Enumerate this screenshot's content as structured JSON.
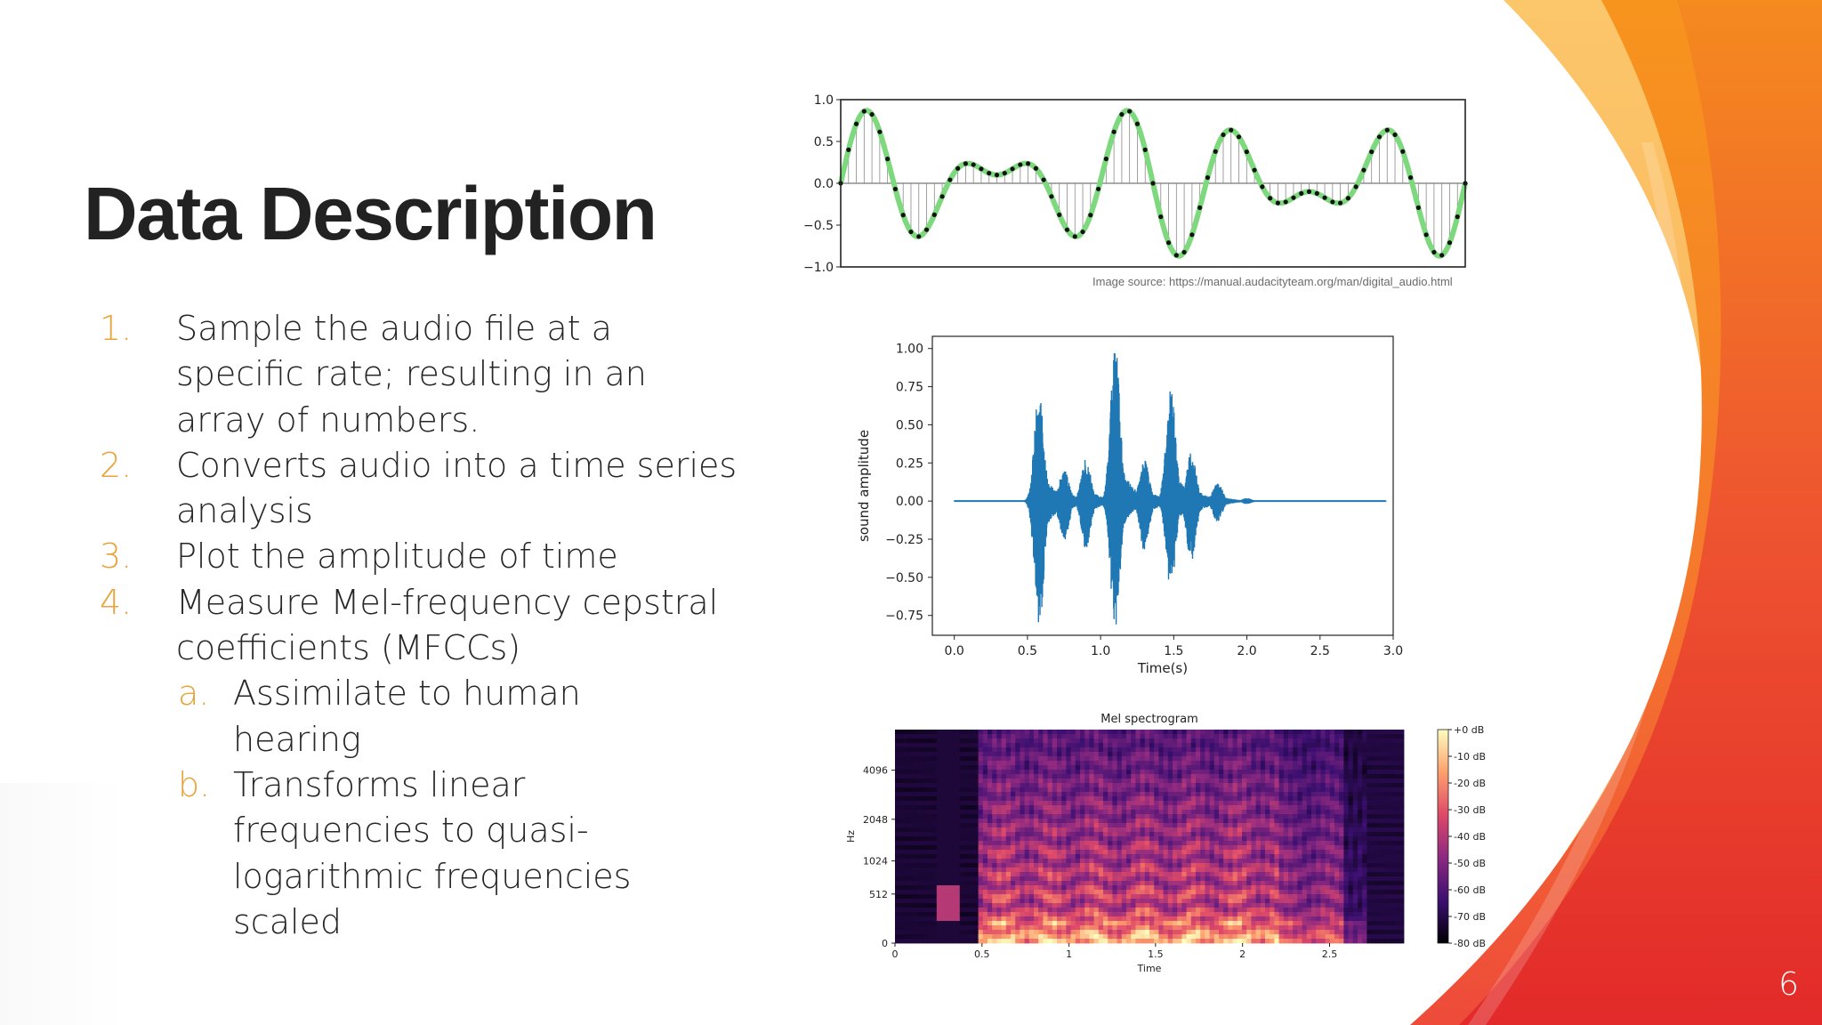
{
  "slide": {
    "title": "Data Description",
    "page_number": "6",
    "colors": {
      "accent_numbers": "#E8A33A",
      "title": "#222222",
      "wave_green": "#7ED97E",
      "waveform_blue": "#1F77B4"
    },
    "list": [
      {
        "num": "1.",
        "text": "Sample the audio file at a specific rate; resulting in an array of numbers."
      },
      {
        "num": "2.",
        "text": "Converts audio into a time series analysis"
      },
      {
        "num": "3.",
        "text": "Plot the amplitude of time"
      },
      {
        "num": "4.",
        "text": "Measure Mel-frequency cepstral coefficients (MFCCs)"
      }
    ],
    "sublist": [
      {
        "num": "a.",
        "text": "Assimilate to human hearing"
      },
      {
        "num": "b.",
        "text": "Transforms linear frequencies to quasi-logarithmic frequencies scaled"
      }
    ],
    "image_source": "Image source: https://manual.audacityteam.org/man/digital_audio.html"
  },
  "chart_data": [
    {
      "type": "line",
      "title": "",
      "xlabel": "",
      "ylabel": "",
      "ylim": [
        -1.0,
        1.0
      ],
      "yticks": [
        "1.0",
        "0.5",
        "0.0",
        "−0.5",
        "−1.0"
      ],
      "series": [
        {
          "kind": "sampled_wave",
          "components": [
            {
              "amplitude": 0.5,
              "cycles": 5
            },
            {
              "amplitude": 0.4,
              "cycles": 7
            }
          ],
          "x_span": [
            0,
            1
          ],
          "samples": 80,
          "color": "#7ED97E"
        }
      ]
    },
    {
      "type": "line",
      "title": "",
      "xlabel": "Time(s)",
      "ylabel": "sound amplitude",
      "xlim": [
        -0.15,
        3.0
      ],
      "ylim": [
        -0.88,
        1.08
      ],
      "xticks": [
        "0.0",
        "0.5",
        "1.0",
        "1.5",
        "2.0",
        "2.5",
        "3.0"
      ],
      "yticks": [
        "1.00",
        "0.75",
        "0.50",
        "0.25",
        "0.00",
        "−0.25",
        "−0.50",
        "−0.75"
      ],
      "series": [
        {
          "kind": "audio_waveform",
          "color": "#1F77B4",
          "x_range": [
            0.0,
            2.95
          ],
          "bursts": [
            {
              "x": 0.58,
              "peak": 0.73,
              "trough": -0.83
            },
            {
              "x": 0.75,
              "peak": 0.22,
              "trough": -0.28
            },
            {
              "x": 0.9,
              "peak": 0.28,
              "trough": -0.32
            },
            {
              "x": 1.1,
              "peak": 1.03,
              "trough": -0.86
            },
            {
              "x": 1.3,
              "peak": 0.27,
              "trough": -0.33
            },
            {
              "x": 1.48,
              "peak": 0.76,
              "trough": -0.6
            },
            {
              "x": 1.62,
              "peak": 0.32,
              "trough": -0.4
            },
            {
              "x": 1.8,
              "peak": 0.12,
              "trough": -0.14
            },
            {
              "x": 2.0,
              "peak": 0.02,
              "trough": -0.02
            }
          ]
        }
      ]
    },
    {
      "type": "heatmap",
      "title": "Mel spectrogram",
      "xlabel": "Time",
      "ylabel": "Hz",
      "xticks": [
        "0",
        "0.5",
        "1",
        "1.5",
        "2",
        "2.5"
      ],
      "yticks": [
        "0",
        "512",
        "1024",
        "2048",
        "4096"
      ],
      "colorbar": {
        "labels": [
          "+0 dB",
          "-10 dB",
          "-20 dB",
          "-30 dB",
          "-40 dB",
          "-50 dB",
          "-60 dB",
          "-70 dB",
          "-80 dB"
        ],
        "colors": [
          "#000004",
          "#3b0f70",
          "#8c2981",
          "#de4968",
          "#fe9f6d",
          "#fcfdbf"
        ]
      }
    }
  ]
}
